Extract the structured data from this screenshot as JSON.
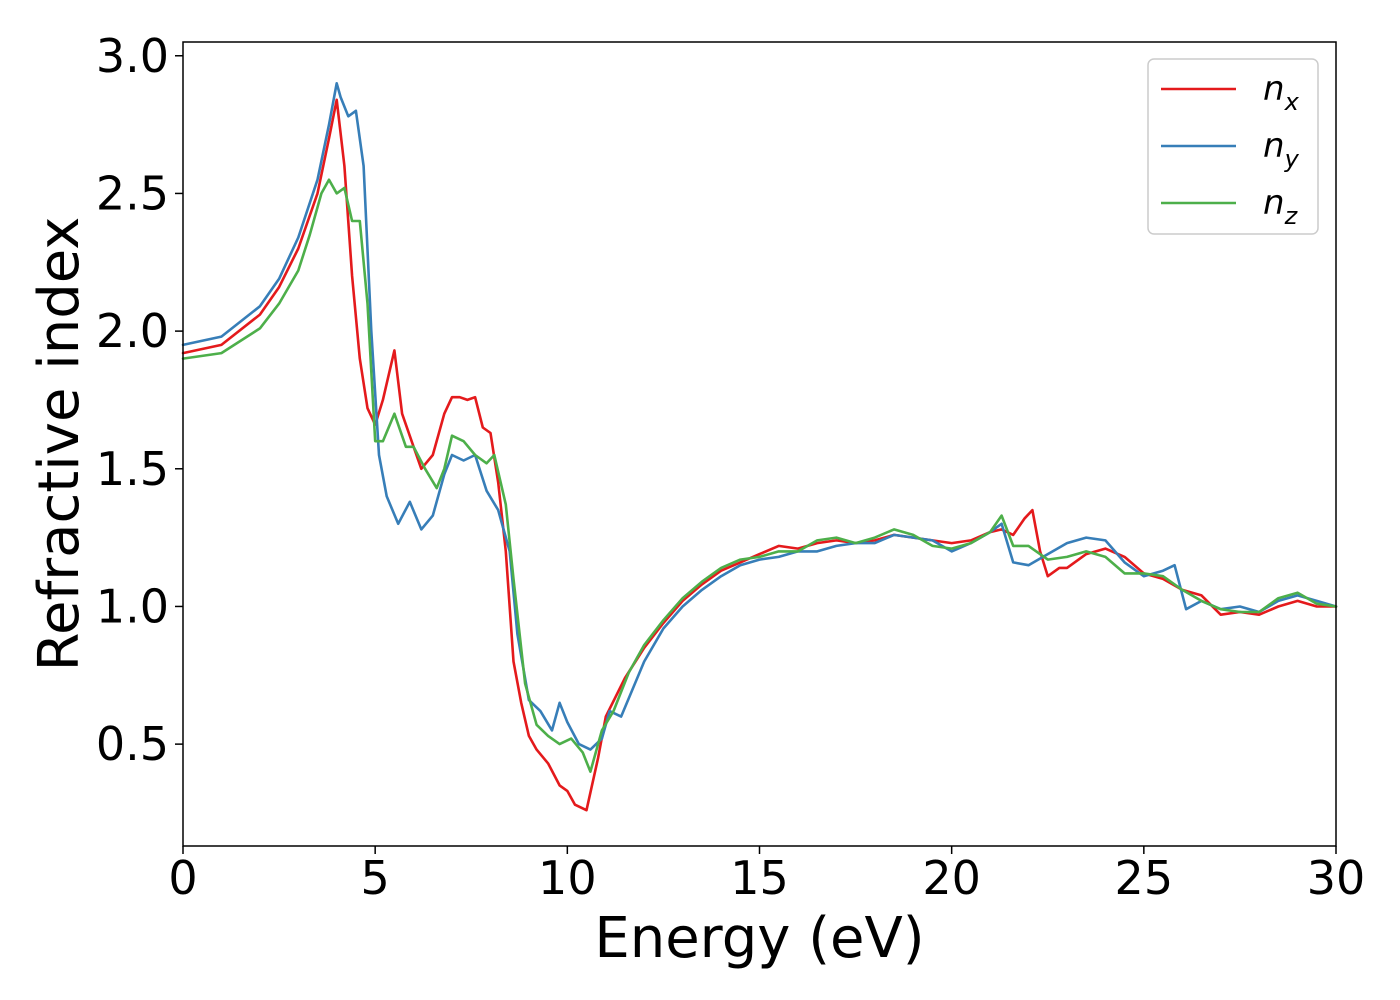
{
  "chart_data": {
    "type": "line",
    "title": "",
    "xlabel": "Energy (eV)",
    "ylabel": "Refractive index",
    "xlim": [
      0,
      30
    ],
    "ylim": [
      0.13,
      3.05
    ],
    "xticks": [
      0,
      5,
      10,
      15,
      20,
      25,
      30
    ],
    "yticks": [
      0.5,
      1.0,
      1.5,
      2.0,
      2.5,
      3.0
    ],
    "xtick_labels": [
      "0",
      "5",
      "10",
      "15",
      "20",
      "25",
      "30"
    ],
    "ytick_labels": [
      "0.5",
      "1.0",
      "1.5",
      "2.0",
      "2.5",
      "3.0"
    ],
    "grid": false,
    "legend_position": "top-right",
    "series": [
      {
        "name": "n_x",
        "label_base": "n",
        "label_sub": "x",
        "color": "#e41a1c",
        "x": [
          0,
          1,
          2,
          2.5,
          3,
          3.5,
          3.8,
          4.0,
          4.2,
          4.4,
          4.6,
          4.8,
          5.0,
          5.2,
          5.5,
          5.7,
          6.0,
          6.2,
          6.5,
          6.8,
          7.0,
          7.2,
          7.4,
          7.6,
          7.8,
          8.0,
          8.2,
          8.4,
          8.6,
          8.8,
          9.0,
          9.2,
          9.5,
          9.8,
          10.0,
          10.2,
          10.5,
          10.8,
          11.0,
          11.5,
          12.0,
          12.5,
          13.0,
          13.5,
          14.0,
          14.5,
          15.0,
          15.5,
          16.0,
          16.5,
          17.0,
          17.5,
          18.0,
          18.5,
          19.0,
          19.5,
          20.0,
          20.5,
          21.0,
          21.3,
          21.6,
          21.9,
          22.1,
          22.3,
          22.5,
          22.8,
          23.0,
          23.5,
          24.0,
          24.5,
          25.0,
          25.5,
          26.0,
          26.5,
          27.0,
          27.5,
          28.0,
          28.5,
          29.0,
          29.5,
          30.0
        ],
        "y": [
          1.92,
          1.95,
          2.06,
          2.16,
          2.3,
          2.5,
          2.7,
          2.84,
          2.6,
          2.2,
          1.9,
          1.72,
          1.66,
          1.75,
          1.93,
          1.7,
          1.58,
          1.5,
          1.55,
          1.7,
          1.76,
          1.76,
          1.75,
          1.76,
          1.65,
          1.63,
          1.45,
          1.2,
          0.8,
          0.65,
          0.53,
          0.48,
          0.43,
          0.35,
          0.33,
          0.28,
          0.26,
          0.45,
          0.6,
          0.74,
          0.85,
          0.94,
          1.02,
          1.08,
          1.13,
          1.16,
          1.19,
          1.22,
          1.21,
          1.23,
          1.24,
          1.23,
          1.24,
          1.26,
          1.25,
          1.24,
          1.23,
          1.24,
          1.27,
          1.28,
          1.26,
          1.32,
          1.35,
          1.2,
          1.11,
          1.14,
          1.14,
          1.19,
          1.21,
          1.18,
          1.12,
          1.1,
          1.06,
          1.04,
          0.97,
          0.98,
          0.97,
          1.0,
          1.02,
          1.0,
          1.0
        ]
      },
      {
        "name": "n_y",
        "label_base": "n",
        "label_sub": "y",
        "color": "#377eb8",
        "x": [
          0,
          1,
          2,
          2.5,
          3,
          3.5,
          3.8,
          4.0,
          4.1,
          4.3,
          4.5,
          4.7,
          4.9,
          5.1,
          5.3,
          5.6,
          5.9,
          6.2,
          6.5,
          6.8,
          7.0,
          7.3,
          7.6,
          7.9,
          8.2,
          8.5,
          8.7,
          9.0,
          9.3,
          9.6,
          9.8,
          10.0,
          10.3,
          10.6,
          10.9,
          11.1,
          11.4,
          12.0,
          12.5,
          13.0,
          13.5,
          14.0,
          14.5,
          15.0,
          15.5,
          16.0,
          16.5,
          17.0,
          17.5,
          18.0,
          18.5,
          19.0,
          19.5,
          20.0,
          20.5,
          21.0,
          21.3,
          21.6,
          22.0,
          22.5,
          23.0,
          23.5,
          24.0,
          24.5,
          25.0,
          25.5,
          25.8,
          26.1,
          26.5,
          27.0,
          27.5,
          28.0,
          28.5,
          29.0,
          29.5,
          30.0
        ],
        "y": [
          1.95,
          1.98,
          2.09,
          2.19,
          2.34,
          2.55,
          2.75,
          2.9,
          2.85,
          2.78,
          2.8,
          2.6,
          2.0,
          1.55,
          1.4,
          1.3,
          1.38,
          1.28,
          1.33,
          1.48,
          1.55,
          1.53,
          1.55,
          1.42,
          1.35,
          1.2,
          0.9,
          0.66,
          0.62,
          0.55,
          0.65,
          0.58,
          0.5,
          0.48,
          0.52,
          0.62,
          0.6,
          0.8,
          0.92,
          1.0,
          1.06,
          1.11,
          1.15,
          1.17,
          1.18,
          1.2,
          1.2,
          1.22,
          1.23,
          1.23,
          1.26,
          1.25,
          1.24,
          1.2,
          1.23,
          1.27,
          1.3,
          1.16,
          1.15,
          1.19,
          1.23,
          1.25,
          1.24,
          1.16,
          1.11,
          1.13,
          1.15,
          0.99,
          1.02,
          0.99,
          1.0,
          0.98,
          1.02,
          1.04,
          1.02,
          1.0
        ]
      },
      {
        "name": "n_z",
        "label_base": "n",
        "label_sub": "z",
        "color": "#4daf4a",
        "x": [
          0,
          1,
          2,
          2.5,
          3,
          3.3,
          3.6,
          3.8,
          4.0,
          4.2,
          4.4,
          4.6,
          4.8,
          5.0,
          5.2,
          5.5,
          5.8,
          6.0,
          6.3,
          6.6,
          6.8,
          7.0,
          7.3,
          7.6,
          7.9,
          8.1,
          8.4,
          8.6,
          8.9,
          9.2,
          9.5,
          9.8,
          10.1,
          10.4,
          10.6,
          10.9,
          11.2,
          11.6,
          12.0,
          12.5,
          13.0,
          13.5,
          14.0,
          14.5,
          15.0,
          15.5,
          16.0,
          16.5,
          17.0,
          17.5,
          18.0,
          18.5,
          19.0,
          19.5,
          20.0,
          20.5,
          21.0,
          21.3,
          21.6,
          22.0,
          22.5,
          23.0,
          23.5,
          24.0,
          24.5,
          25.0,
          25.5,
          26.0,
          26.5,
          27.0,
          27.5,
          28.0,
          28.5,
          29.0,
          29.5,
          30.0
        ],
        "y": [
          1.9,
          1.92,
          2.01,
          2.1,
          2.22,
          2.35,
          2.5,
          2.55,
          2.5,
          2.52,
          2.4,
          2.4,
          2.1,
          1.6,
          1.6,
          1.7,
          1.58,
          1.58,
          1.5,
          1.43,
          1.5,
          1.62,
          1.6,
          1.55,
          1.52,
          1.55,
          1.37,
          1.1,
          0.72,
          0.57,
          0.53,
          0.5,
          0.52,
          0.47,
          0.4,
          0.55,
          0.62,
          0.76,
          0.86,
          0.95,
          1.03,
          1.09,
          1.14,
          1.17,
          1.18,
          1.2,
          1.2,
          1.24,
          1.25,
          1.23,
          1.25,
          1.28,
          1.26,
          1.22,
          1.21,
          1.23,
          1.27,
          1.33,
          1.22,
          1.22,
          1.17,
          1.18,
          1.2,
          1.18,
          1.12,
          1.12,
          1.11,
          1.06,
          1.02,
          0.99,
          0.98,
          0.98,
          1.03,
          1.05,
          1.01,
          1.0
        ]
      }
    ]
  }
}
